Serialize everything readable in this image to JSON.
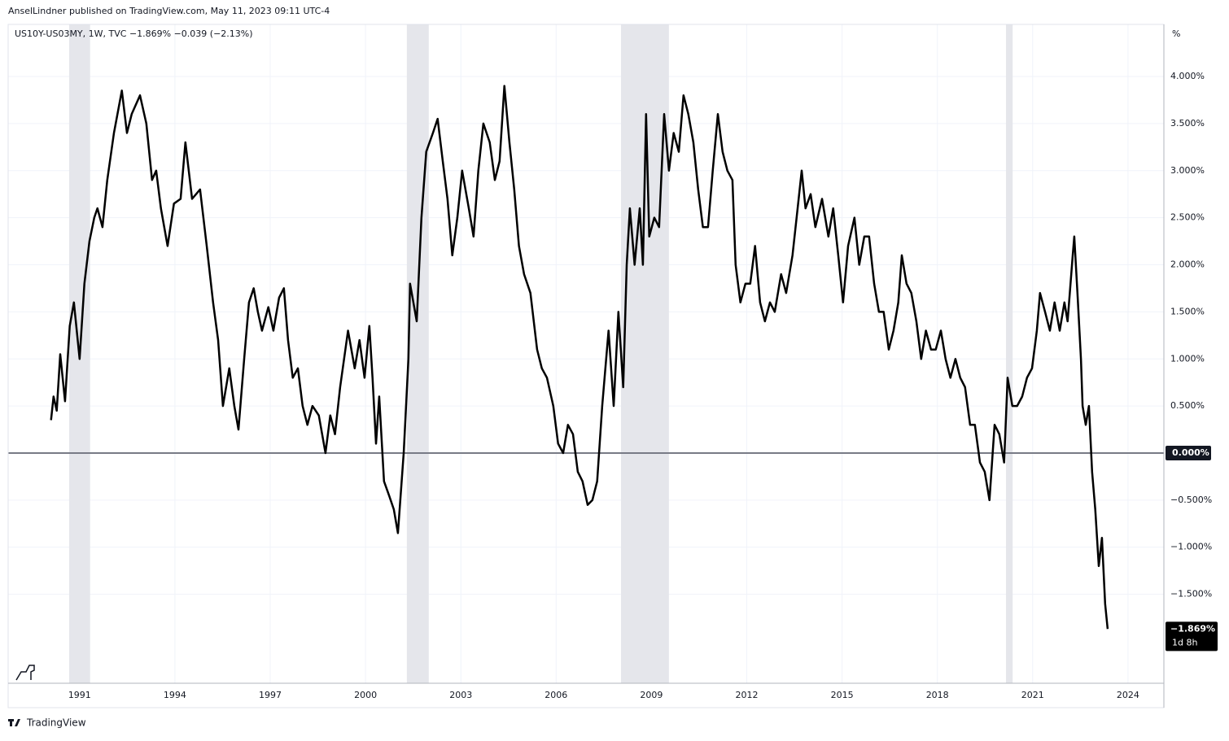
{
  "header": "AnselLindner published on TradingView.com, May 11, 2023 09:11 UTC-4",
  "footer": "TradingView",
  "chart_data": {
    "type": "line",
    "title": "US10Y-US03MY, 1W, TVC  −1.869%  −0.039 (−2.13%)",
    "y_unit": "%",
    "x": [
      1990.1,
      1990.18,
      1990.28,
      1990.39,
      1990.54,
      1990.69,
      1990.82,
      1991.0,
      1991.15,
      1991.31,
      1991.46,
      1991.56,
      1991.72,
      1991.87,
      1992.08,
      1992.33,
      1992.49,
      1992.64,
      1992.9,
      1993.1,
      1993.28,
      1993.41,
      1993.56,
      1993.77,
      1993.97,
      1994.18,
      1994.33,
      1994.54,
      1994.79,
      1995.0,
      1995.2,
      1995.36,
      1995.51,
      1995.71,
      1995.87,
      1996.0,
      1996.18,
      1996.33,
      1996.48,
      1996.61,
      1996.74,
      1996.94,
      1997.1,
      1997.28,
      1997.43,
      1997.56,
      1997.71,
      1997.87,
      1998.02,
      1998.17,
      1998.33,
      1998.53,
      1998.74,
      1998.89,
      1999.04,
      1999.2,
      1999.45,
      1999.66,
      1999.81,
      1999.97,
      2000.12,
      2000.22,
      2000.33,
      2000.43,
      2000.58,
      2000.74,
      2000.89,
      2001.02,
      2001.2,
      2001.35,
      2001.4,
      2001.61,
      2001.76,
      2001.91,
      2002.12,
      2002.27,
      2002.43,
      2002.58,
      2002.73,
      2002.89,
      2003.04,
      2003.25,
      2003.4,
      2003.55,
      2003.71,
      2003.91,
      2004.07,
      2004.22,
      2004.37,
      2004.53,
      2004.68,
      2004.83,
      2004.99,
      2005.19,
      2005.4,
      2005.55,
      2005.71,
      2005.91,
      2006.06,
      2006.22,
      2006.37,
      2006.53,
      2006.68,
      2006.83,
      2006.99,
      2007.14,
      2007.29,
      2007.45,
      2007.65,
      2007.81,
      2007.96,
      2008.11,
      2008.22,
      2008.32,
      2008.47,
      2008.63,
      2008.73,
      2008.83,
      2008.93,
      2009.09,
      2009.24,
      2009.4,
      2009.55,
      2009.7,
      2009.86,
      2010.01,
      2010.16,
      2010.32,
      2010.47,
      2010.62,
      2010.78,
      2010.93,
      2011.09,
      2011.24,
      2011.39,
      2011.55,
      2011.65,
      2011.8,
      2011.96,
      2012.11,
      2012.26,
      2012.42,
      2012.57,
      2012.73,
      2012.88,
      2013.08,
      2013.24,
      2013.44,
      2013.6,
      2013.73,
      2013.85,
      2014.01,
      2014.16,
      2014.37,
      2014.57,
      2014.72,
      2014.88,
      2015.03,
      2015.19,
      2015.39,
      2015.54,
      2015.7,
      2015.85,
      2016.01,
      2016.16,
      2016.31,
      2016.47,
      2016.62,
      2016.77,
      2016.88,
      2017.03,
      2017.18,
      2017.34,
      2017.49,
      2017.64,
      2017.8,
      2017.95,
      2018.11,
      2018.26,
      2018.41,
      2018.57,
      2018.72,
      2018.87,
      2019.03,
      2019.18,
      2019.34,
      2019.49,
      2019.64,
      2019.8,
      2019.95,
      2020.1,
      2020.21,
      2020.36,
      2020.51,
      2020.67,
      2020.82,
      2020.98,
      2021.13,
      2021.23,
      2021.39,
      2021.54,
      2021.69,
      2021.85,
      2022.0,
      2022.1,
      2022.26,
      2022.31,
      2022.41,
      2022.52,
      2022.57,
      2022.67,
      2022.77,
      2022.87,
      2022.97,
      2023.08,
      2023.18,
      2023.28,
      2023.36
    ],
    "series": [
      {
        "name": "US10Y-US03MY",
        "color": "#000000",
        "values": [
          0.35,
          0.6,
          0.45,
          1.05,
          0.55,
          1.35,
          1.6,
          1.0,
          1.8,
          2.25,
          2.5,
          2.6,
          2.4,
          2.9,
          3.4,
          3.85,
          3.4,
          3.6,
          3.8,
          3.5,
          2.9,
          3.0,
          2.6,
          2.2,
          2.65,
          2.7,
          3.3,
          2.7,
          2.8,
          2.2,
          1.6,
          1.2,
          0.5,
          0.9,
          0.5,
          0.25,
          1.0,
          1.6,
          1.75,
          1.5,
          1.3,
          1.55,
          1.3,
          1.65,
          1.75,
          1.2,
          0.8,
          0.9,
          0.5,
          0.3,
          0.5,
          0.4,
          0.0,
          0.4,
          0.2,
          0.7,
          1.3,
          0.9,
          1.2,
          0.8,
          1.35,
          0.8,
          0.1,
          0.6,
          -0.3,
          -0.45,
          -0.6,
          -0.85,
          0.0,
          1.0,
          1.8,
          1.4,
          2.5,
          3.2,
          3.4,
          3.55,
          3.1,
          2.7,
          2.1,
          2.5,
          3.0,
          2.6,
          2.3,
          3.0,
          3.5,
          3.3,
          2.9,
          3.1,
          3.9,
          3.3,
          2.8,
          2.2,
          1.9,
          1.7,
          1.1,
          0.9,
          0.8,
          0.5,
          0.1,
          0.0,
          0.3,
          0.2,
          -0.2,
          -0.3,
          -0.55,
          -0.5,
          -0.3,
          0.5,
          1.3,
          0.5,
          1.5,
          0.7,
          2.0,
          2.6,
          2.0,
          2.6,
          2.0,
          3.6,
          2.3,
          2.5,
          2.4,
          3.6,
          3.0,
          3.4,
          3.2,
          3.8,
          3.6,
          3.3,
          2.8,
          2.4,
          2.4,
          3.0,
          3.6,
          3.2,
          3.0,
          2.9,
          2.0,
          1.6,
          1.8,
          1.8,
          2.2,
          1.6,
          1.4,
          1.6,
          1.5,
          1.9,
          1.7,
          2.1,
          2.6,
          3.0,
          2.6,
          2.75,
          2.4,
          2.7,
          2.3,
          2.6,
          2.1,
          1.6,
          2.2,
          2.5,
          2.0,
          2.3,
          2.3,
          1.8,
          1.5,
          1.5,
          1.1,
          1.3,
          1.6,
          2.1,
          1.8,
          1.7,
          1.4,
          1.0,
          1.3,
          1.1,
          1.1,
          1.3,
          1.0,
          0.8,
          1.0,
          0.8,
          0.7,
          0.3,
          0.3,
          -0.1,
          -0.2,
          -0.5,
          0.3,
          0.2,
          -0.1,
          0.8,
          0.5,
          0.5,
          0.6,
          0.8,
          0.9,
          1.3,
          1.7,
          1.5,
          1.3,
          1.6,
          1.3,
          1.6,
          1.4,
          2.1,
          2.3,
          1.7,
          1.0,
          0.5,
          0.3,
          0.5,
          -0.2,
          -0.6,
          -1.2,
          -0.9,
          -1.6,
          -1.869
        ]
      }
    ],
    "shaded_ranges": [
      [
        1990.67,
        1991.33
      ],
      [
        2001.3,
        2001.99
      ],
      [
        2008.04,
        2009.55
      ],
      [
        2020.16,
        2020.37
      ]
    ],
    "shade_color": "#e5e6eb",
    "xlim": [
      1988.75,
      2025.13
    ],
    "xticks": [
      1991,
      1994,
      1997,
      2000,
      2003,
      2006,
      2009,
      2012,
      2015,
      2018,
      2021,
      2024
    ],
    "ylim": [
      -2.445,
      4.553
    ],
    "yticks": [
      {
        "value": 4,
        "label": "4.000%"
      },
      {
        "value": 3.5,
        "label": "3.500%"
      },
      {
        "value": 3,
        "label": "3.000%"
      },
      {
        "value": 2.5,
        "label": "2.500%"
      },
      {
        "value": 2,
        "label": "2.000%"
      },
      {
        "value": 1.5,
        "label": "1.500%"
      },
      {
        "value": 1,
        "label": "1.000%"
      },
      {
        "value": 0.5,
        "label": "0.500%"
      },
      {
        "value": -0.5,
        "label": "−0.500%"
      },
      {
        "value": -1,
        "label": "−1.000%"
      },
      {
        "value": -1.5,
        "label": "−1.500%"
      }
    ],
    "reference_line": {
      "value": 0,
      "label": "0.000%",
      "color": "#787b86"
    },
    "last_value": {
      "value": -1.869,
      "label": "−1.869%",
      "countdown": "1d 8h"
    },
    "grid": true
  }
}
